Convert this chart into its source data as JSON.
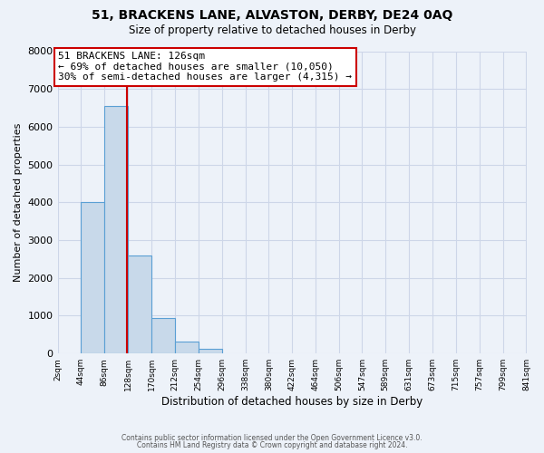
{
  "title": "51, BRACKENS LANE, ALVASTON, DERBY, DE24 0AQ",
  "subtitle": "Size of property relative to detached houses in Derby",
  "xlabel": "Distribution of detached houses by size in Derby",
  "ylabel": "Number of detached properties",
  "bin_edges": [
    2,
    44,
    86,
    128,
    170,
    212,
    254,
    296,
    338,
    380,
    422,
    464,
    506,
    547,
    589,
    631,
    673,
    715,
    757,
    799,
    841
  ],
  "bin_labels": [
    "2sqm",
    "44sqm",
    "86sqm",
    "128sqm",
    "170sqm",
    "212sqm",
    "254sqm",
    "296sqm",
    "338sqm",
    "380sqm",
    "422sqm",
    "464sqm",
    "506sqm",
    "547sqm",
    "589sqm",
    "631sqm",
    "673sqm",
    "715sqm",
    "757sqm",
    "799sqm",
    "841sqm"
  ],
  "bar_heights": [
    0,
    4000,
    6550,
    2600,
    950,
    320,
    130,
    0,
    0,
    0,
    0,
    0,
    0,
    0,
    0,
    0,
    0,
    0,
    0,
    0
  ],
  "bar_color": "#c8d9ea",
  "bar_edge_color": "#5a9fd4",
  "ylim": [
    0,
    8000
  ],
  "property_line_x": 126,
  "property_line_color": "#cc0000",
  "annotation_title": "51 BRACKENS LANE: 126sqm",
  "annotation_line1": "← 69% of detached houses are smaller (10,050)",
  "annotation_line2": "30% of semi-detached houses are larger (4,315) →",
  "annotation_box_color": "#ffffff",
  "annotation_box_edge": "#cc0000",
  "grid_color": "#cdd6e8",
  "background_color": "#edf2f9",
  "footer_line1": "Contains HM Land Registry data © Crown copyright and database right 2024.",
  "footer_line2": "Contains public sector information licensed under the Open Government Licence v3.0."
}
